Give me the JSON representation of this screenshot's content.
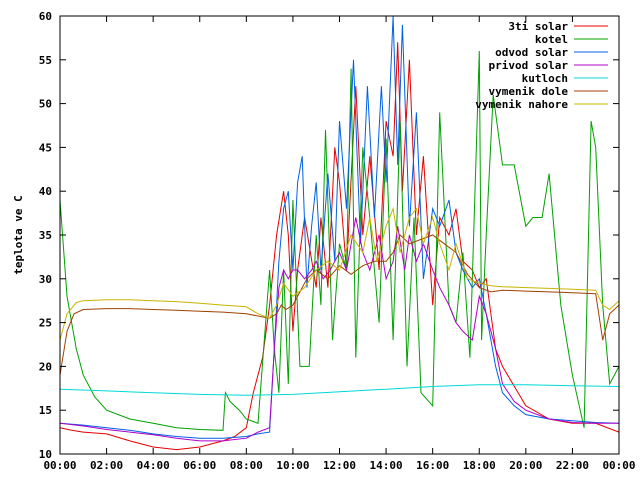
{
  "chart_data": {
    "type": "line",
    "title": "",
    "xlabel": "",
    "ylabel": "teplota ve C",
    "xlim": [
      "00:00",
      "24:00"
    ],
    "ylim": [
      10,
      60
    ],
    "grid": false,
    "legend_position": "top-right",
    "x_ticks": [
      "00:00",
      "02:00",
      "04:00",
      "06:00",
      "08:00",
      "10:00",
      "12:00",
      "14:00",
      "16:00",
      "18:00",
      "20:00",
      "22:00",
      "00:00"
    ],
    "y_ticks": [
      "10",
      "15",
      "20",
      "25",
      "30",
      "35",
      "40",
      "45",
      "50",
      "55",
      "60"
    ],
    "x_unit_note": "hours",
    "series": [
      {
        "name": "3ti solar",
        "color": "#e60000",
        "x": [
          0,
          0.5,
          1,
          2,
          3,
          4,
          5,
          6,
          7,
          7.5,
          8,
          8.3,
          8.7,
          9,
          9.3,
          9.6,
          9.8,
          10,
          10.2,
          10.5,
          11,
          11.2,
          11.5,
          11.8,
          12,
          12.3,
          12.7,
          13,
          13.3,
          13.7,
          14,
          14.3,
          14.5,
          14.7,
          15,
          15.3,
          15.6,
          16,
          16.3,
          16.7,
          17,
          17.3,
          17.7,
          18,
          18.3,
          18.7,
          19,
          20,
          21,
          22,
          23,
          24
        ],
        "y": [
          13,
          12.7,
          12.5,
          12.3,
          11.5,
          10.8,
          10.5,
          10.8,
          11.5,
          12,
          13,
          17,
          21,
          27,
          35,
          40,
          35,
          24,
          31,
          37,
          29,
          37,
          29,
          45,
          41,
          31,
          52,
          35,
          44,
          31,
          48,
          44,
          57,
          40,
          55,
          35,
          44,
          27,
          37,
          35,
          38,
          32,
          31,
          29,
          30,
          22,
          20,
          15.5,
          14,
          13.5,
          13.5,
          12.5
        ]
      },
      {
        "name": "kotel",
        "color": "#00a000",
        "x": [
          0,
          0.3,
          0.7,
          1,
          1.5,
          2,
          3,
          4,
          5,
          6,
          7,
          7.1,
          7.3,
          7.7,
          8,
          8.5,
          9,
          9.2,
          9.4,
          9.6,
          9.8,
          10,
          10.3,
          10.7,
          11,
          11.2,
          11.4,
          11.7,
          12,
          12.3,
          12.5,
          12.7,
          13,
          13.3,
          13.7,
          14,
          14.3,
          14.6,
          14.9,
          15.2,
          15.5,
          16,
          16.3,
          16.7,
          17,
          17.3,
          17.6,
          18,
          18.1,
          18.3,
          18.6,
          19,
          19.5,
          20,
          20.3,
          20.7,
          21,
          21.5,
          22,
          22.5,
          22.8,
          23,
          23.3,
          23.6,
          24
        ],
        "y": [
          39,
          28,
          22,
          19,
          16.5,
          15,
          14,
          13.5,
          13,
          12.8,
          12.7,
          17,
          16,
          15,
          14,
          13.5,
          31,
          22,
          17,
          31,
          18,
          39,
          20,
          20,
          35,
          27,
          47,
          23,
          34,
          31,
          54,
          21,
          45,
          37,
          25,
          46,
          23,
          48,
          20,
          37,
          17,
          15.5,
          49,
          27,
          25,
          33,
          21,
          56,
          23,
          35,
          51,
          43,
          43,
          36,
          37,
          37,
          42,
          27,
          19,
          13,
          48,
          45,
          27,
          18,
          20
        ]
      },
      {
        "name": "odvod solar",
        "color": "#0060e6",
        "x": [
          0,
          1,
          2,
          3,
          4,
          5,
          6,
          7,
          8,
          8.5,
          9,
          9.2,
          9.4,
          9.6,
          9.8,
          10,
          10.2,
          10.4,
          10.6,
          10.8,
          11,
          11.2,
          11.5,
          11.8,
          12,
          12.3,
          12.6,
          12.9,
          13.2,
          13.5,
          13.8,
          14,
          14.3,
          14.5,
          14.7,
          15,
          15.3,
          15.6,
          16,
          16.3,
          16.7,
          17,
          17.3,
          17.7,
          18,
          18.3,
          18.7,
          19,
          19.5,
          20,
          21,
          22,
          23,
          24
        ],
        "y": [
          13.5,
          13.3,
          13,
          12.7,
          12.3,
          12,
          11.8,
          11.8,
          12,
          12.3,
          12.5,
          22,
          32,
          38,
          40,
          31,
          41,
          44,
          29,
          36,
          41,
          31,
          42,
          32,
          48,
          38,
          55,
          34,
          52,
          37,
          52,
          41,
          60,
          43,
          59,
          36,
          49,
          30,
          38,
          36,
          39,
          33,
          31,
          29,
          30,
          26,
          20,
          17,
          15.5,
          14.5,
          14,
          13.8,
          13.6,
          13.5
        ]
      },
      {
        "name": "privod solar",
        "color": "#b000c8",
        "x": [
          0,
          1,
          2,
          3,
          4,
          5,
          6,
          7,
          8,
          8.5,
          9,
          9.2,
          9.4,
          9.6,
          9.8,
          10,
          10.2,
          10.5,
          10.8,
          11,
          11.3,
          11.6,
          12,
          12.3,
          12.7,
          13,
          13.3,
          13.7,
          14,
          14.3,
          14.5,
          14.8,
          15,
          15.3,
          15.6,
          16,
          16.3,
          16.7,
          17,
          17.3,
          17.7,
          18,
          18.3,
          18.7,
          19,
          19.5,
          20,
          21,
          22,
          23,
          24
        ],
        "y": [
          13.5,
          13.2,
          12.8,
          12.5,
          12.2,
          11.8,
          11.5,
          11.5,
          11.8,
          12.5,
          13,
          22,
          29,
          31,
          30,
          31,
          31,
          30,
          31,
          32,
          30,
          31,
          33,
          31,
          37,
          33,
          31,
          35,
          30,
          32,
          36,
          31,
          35,
          32,
          34,
          31,
          29,
          27,
          25,
          24,
          23,
          28,
          26,
          22,
          18,
          16,
          15,
          14,
          13.6,
          13.5,
          13.5
        ]
      },
      {
        "name": "kutloch",
        "color": "#00d8d8",
        "x": [
          0,
          2,
          4,
          6,
          8,
          10,
          12,
          14,
          16,
          18,
          20,
          22,
          24
        ],
        "y": [
          17.4,
          17.2,
          17,
          16.8,
          16.7,
          16.8,
          17.1,
          17.4,
          17.7,
          17.9,
          17.9,
          17.8,
          17.7
        ]
      },
      {
        "name": "vymenik dole",
        "color": "#a04000",
        "x": [
          0,
          0.3,
          0.6,
          1,
          2,
          3,
          4,
          5,
          6,
          7,
          8,
          9,
          9.3,
          9.5,
          9.7,
          10,
          10.3,
          10.6,
          11,
          11.5,
          12,
          12.5,
          13,
          13.5,
          14,
          14.3,
          14.6,
          15,
          15.5,
          16,
          16.5,
          17,
          17.5,
          18,
          18.5,
          19,
          20,
          21,
          22,
          23,
          23.3,
          23.6,
          24
        ],
        "y": [
          19,
          24,
          26,
          26.5,
          26.6,
          26.6,
          26.5,
          26.4,
          26.3,
          26.2,
          26,
          25.5,
          26,
          27,
          26.5,
          27,
          28.5,
          30,
          31,
          30,
          31.5,
          30.5,
          31.5,
          32,
          32,
          33,
          35,
          34,
          34.5,
          35,
          34,
          33,
          30.5,
          29,
          28.5,
          28.7,
          28.6,
          28.5,
          28.4,
          28.3,
          23,
          26,
          27
        ]
      },
      {
        "name": "vymenik nahore",
        "color": "#c8b400",
        "x": [
          0,
          0.3,
          0.7,
          1,
          2,
          3,
          4,
          5,
          6,
          7,
          8,
          8.5,
          9,
          9.3,
          9.6,
          10,
          10.5,
          11,
          11.5,
          12,
          12.5,
          13,
          13.3,
          13.6,
          14,
          14.3,
          14.6,
          15,
          15.3,
          15.6,
          16,
          16.3,
          16.7,
          17,
          17.5,
          18,
          18.5,
          19,
          20,
          21,
          22,
          23,
          23.3,
          23.6,
          24
        ],
        "y": [
          23,
          26,
          27.3,
          27.5,
          27.6,
          27.6,
          27.5,
          27.4,
          27.2,
          27,
          26.8,
          26,
          25.5,
          27,
          29.5,
          28,
          29,
          31,
          32,
          31,
          35,
          33,
          37,
          32,
          36,
          38,
          33,
          37,
          38,
          34,
          37,
          34,
          31,
          34,
          30,
          29.5,
          29.2,
          29.1,
          29,
          28.9,
          28.8,
          28.7,
          27,
          26.5,
          27.5
        ]
      }
    ]
  }
}
